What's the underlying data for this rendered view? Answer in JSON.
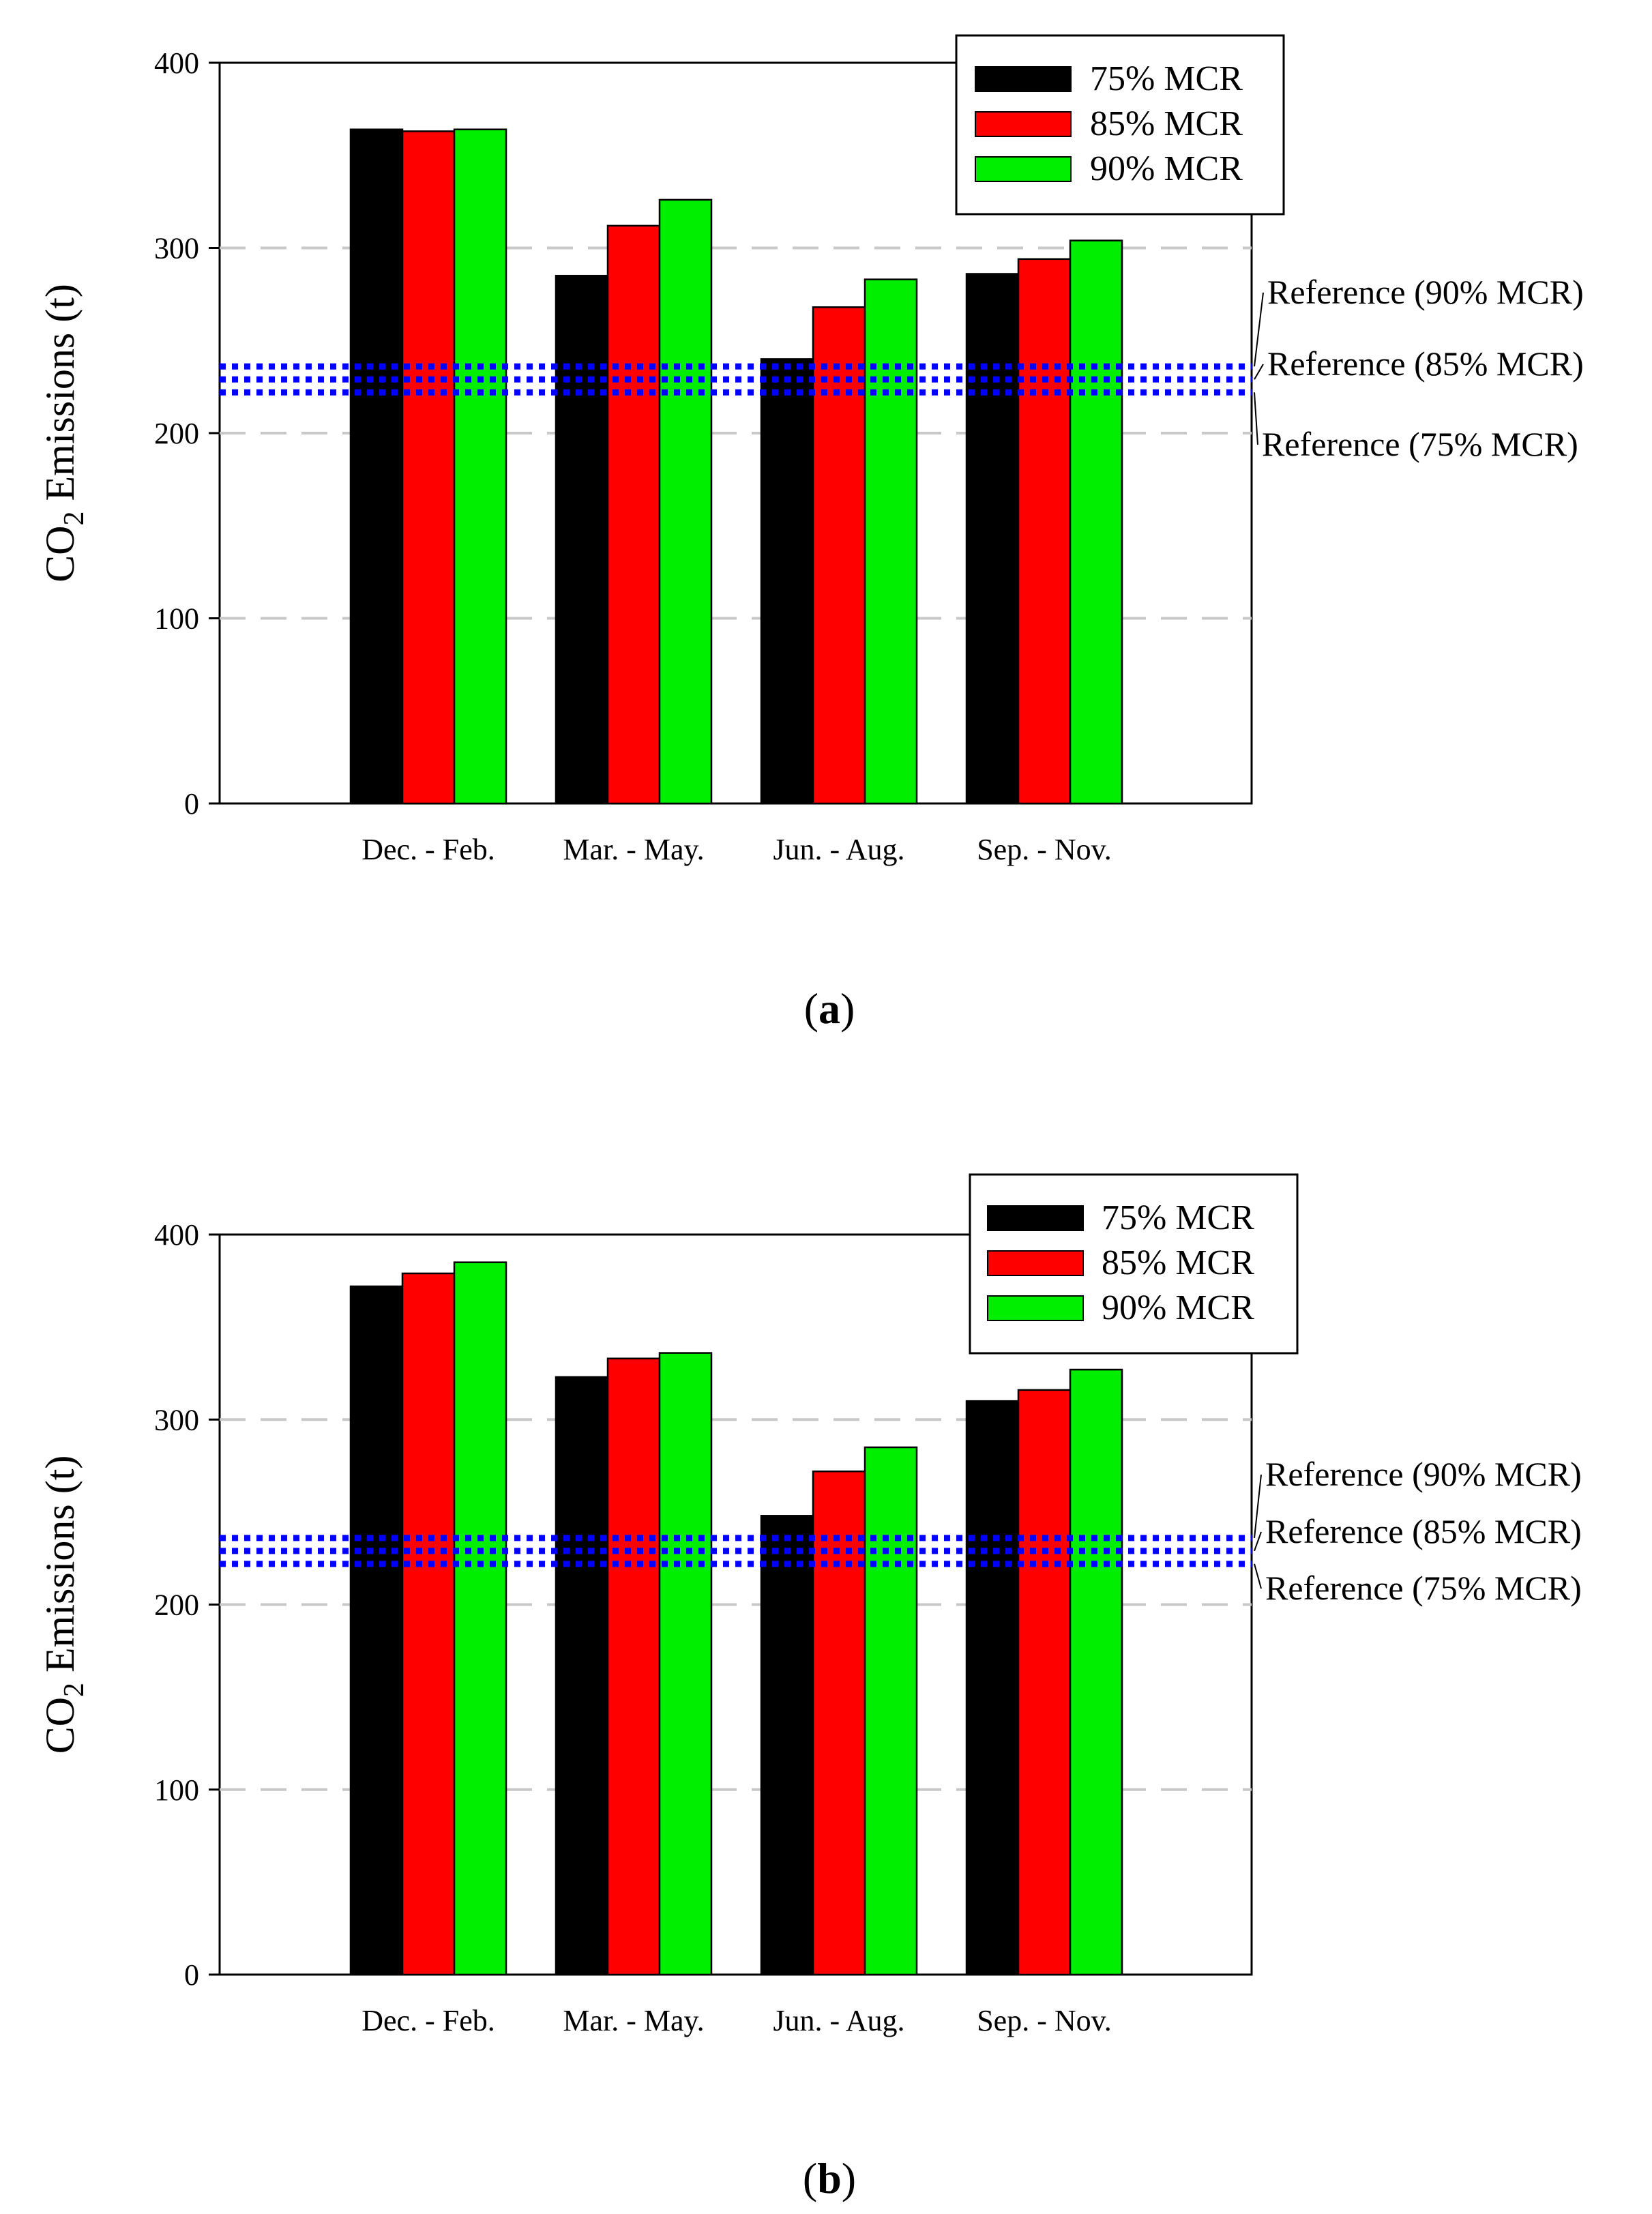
{
  "chart_data": [
    {
      "type": "bar",
      "panel_label": "a",
      "ylabel_main": "CO",
      "ylabel_sub": "2",
      "ylabel_rest": " Emissions (t)",
      "ylim": [
        0,
        400
      ],
      "yticks": [
        0,
        100,
        200,
        300,
        400
      ],
      "grid": "dashed horizontal",
      "categories": [
        "Dec. - Feb.",
        "Mar. - May.",
        "Jun. - Aug.",
        "Sep. - Nov."
      ],
      "series": [
        {
          "name": "75% MCR",
          "color": "#000000",
          "values": [
            364,
            285,
            240,
            286
          ]
        },
        {
          "name": "85% MCR",
          "color": "#ff0000",
          "values": [
            363,
            312,
            268,
            294
          ]
        },
        {
          "name": "90% MCR",
          "color": "#00ee00",
          "values": [
            364,
            326,
            283,
            304
          ]
        }
      ],
      "legend_position": "top-right",
      "reference_lines": [
        {
          "label": "Reference (90% MCR)",
          "value": 236,
          "color": "#0000ff"
        },
        {
          "label": "Reference (85% MCR)",
          "value": 229,
          "color": "#0000ff"
        },
        {
          "label": "Reference (75% MCR)",
          "value": 222,
          "color": "#0000ff"
        }
      ]
    },
    {
      "type": "bar",
      "panel_label": "b",
      "ylabel_main": "CO",
      "ylabel_sub": "2",
      "ylabel_rest": " Emissions (t)",
      "ylim": [
        0,
        400
      ],
      "yticks": [
        0,
        100,
        200,
        300,
        400
      ],
      "grid": "dashed horizontal",
      "categories": [
        "Dec. - Feb.",
        "Mar. - May.",
        "Jun. - Aug.",
        "Sep. - Nov."
      ],
      "series": [
        {
          "name": "75% MCR",
          "color": "#000000",
          "values": [
            372,
            323,
            248,
            310
          ]
        },
        {
          "name": "85% MCR",
          "color": "#ff0000",
          "values": [
            379,
            333,
            272,
            316
          ]
        },
        {
          "name": "90% MCR",
          "color": "#00ee00",
          "values": [
            385,
            336,
            285,
            327
          ]
        }
      ],
      "legend_position": "top-right",
      "reference_lines": [
        {
          "label": "Reference (90% MCR)",
          "value": 236,
          "color": "#0000ff"
        },
        {
          "label": "Reference (85% MCR)",
          "value": 229,
          "color": "#0000ff"
        },
        {
          "label": "Reference (75% MCR)",
          "value": 222,
          "color": "#0000ff"
        }
      ]
    }
  ]
}
